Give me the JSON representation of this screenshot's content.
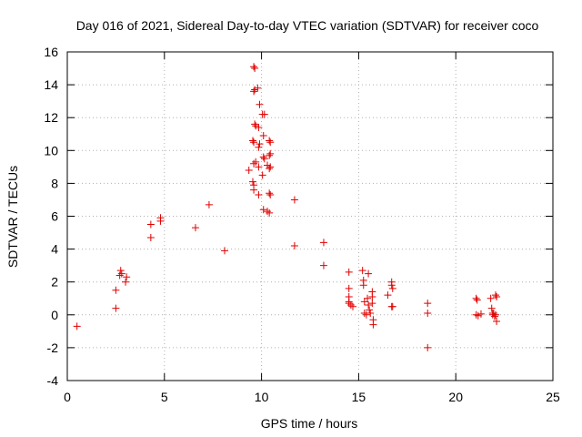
{
  "chart_data": {
    "type": "scatter",
    "title": "Day 016 of 2021, Sidereal Day-to-day VTEC variation (SDTVAR) for receiver coco",
    "xlabel": "GPS time / hours",
    "ylabel": "SDTVAR / TECUs",
    "xlim": [
      0,
      25
    ],
    "ylim": [
      -4,
      16
    ],
    "xticks": [
      0,
      5,
      10,
      15,
      20,
      25
    ],
    "yticks": [
      -4,
      -2,
      0,
      2,
      4,
      6,
      8,
      10,
      12,
      14,
      16
    ],
    "grid": true,
    "marker": "+",
    "color": "#e00000",
    "series": [
      {
        "name": "SDTVAR",
        "points": [
          [
            0.5,
            -0.7
          ],
          [
            2.5,
            1.5
          ],
          [
            2.5,
            0.4
          ],
          [
            2.7,
            2.4
          ],
          [
            2.75,
            2.7
          ],
          [
            2.8,
            2.5
          ],
          [
            3.0,
            2.0
          ],
          [
            3.05,
            2.3
          ],
          [
            4.3,
            5.5
          ],
          [
            4.3,
            4.7
          ],
          [
            4.8,
            5.9
          ],
          [
            4.8,
            5.7
          ],
          [
            6.6,
            5.3
          ],
          [
            7.3,
            6.7
          ],
          [
            8.1,
            3.9
          ],
          [
            9.35,
            8.8
          ],
          [
            9.6,
            15.1
          ],
          [
            9.65,
            15.0
          ],
          [
            9.6,
            13.6
          ],
          [
            9.65,
            13.7
          ],
          [
            9.8,
            13.8
          ],
          [
            9.65,
            11.6
          ],
          [
            9.7,
            11.5
          ],
          [
            9.55,
            10.6
          ],
          [
            9.6,
            10.5
          ],
          [
            9.6,
            9.2
          ],
          [
            9.7,
            9.3
          ],
          [
            9.55,
            8.1
          ],
          [
            9.6,
            7.9
          ],
          [
            9.6,
            7.6
          ],
          [
            9.9,
            12.8
          ],
          [
            9.85,
            11.4
          ],
          [
            10.05,
            12.2
          ],
          [
            10.15,
            12.2
          ],
          [
            10.1,
            10.9
          ],
          [
            9.9,
            10.4
          ],
          [
            9.85,
            10.2
          ],
          [
            10.1,
            9.6
          ],
          [
            10.15,
            9.5
          ],
          [
            9.85,
            9.0
          ],
          [
            10.05,
            8.5
          ],
          [
            9.85,
            7.3
          ],
          [
            10.1,
            6.4
          ],
          [
            10.3,
            6.3
          ],
          [
            10.4,
            6.2
          ],
          [
            10.4,
            10.6
          ],
          [
            10.45,
            10.5
          ],
          [
            10.4,
            9.7
          ],
          [
            10.45,
            9.8
          ],
          [
            10.3,
            9.1
          ],
          [
            10.4,
            8.9
          ],
          [
            10.45,
            9.0
          ],
          [
            10.4,
            7.4
          ],
          [
            10.45,
            7.3
          ],
          [
            11.7,
            7.0
          ],
          [
            11.7,
            4.2
          ],
          [
            13.2,
            4.4
          ],
          [
            13.2,
            3.0
          ],
          [
            14.5,
            2.6
          ],
          [
            14.5,
            1.6
          ],
          [
            14.5,
            1.1
          ],
          [
            14.5,
            0.8
          ],
          [
            14.6,
            0.6
          ],
          [
            14.5,
            0.7
          ],
          [
            14.7,
            0.5
          ],
          [
            15.2,
            2.7
          ],
          [
            15.25,
            2.1
          ],
          [
            15.25,
            1.8
          ],
          [
            15.3,
            0.8
          ],
          [
            15.3,
            0.1
          ],
          [
            15.4,
            0.0
          ],
          [
            15.5,
            2.5
          ],
          [
            15.45,
            1.0
          ],
          [
            15.5,
            0.6
          ],
          [
            15.55,
            0.3
          ],
          [
            15.6,
            0.1
          ],
          [
            15.7,
            1.4
          ],
          [
            15.7,
            1.1
          ],
          [
            15.7,
            0.7
          ],
          [
            15.75,
            -0.3
          ],
          [
            15.75,
            -0.6
          ],
          [
            16.5,
            1.2
          ],
          [
            16.7,
            2.0
          ],
          [
            16.7,
            1.8
          ],
          [
            16.75,
            1.6
          ],
          [
            16.7,
            0.5
          ],
          [
            16.75,
            0.5
          ],
          [
            18.55,
            0.7
          ],
          [
            18.55,
            0.1
          ],
          [
            18.55,
            -2.0
          ],
          [
            21.05,
            1.0
          ],
          [
            21.1,
            0.9
          ],
          [
            21.05,
            0.0
          ],
          [
            21.15,
            -0.05
          ],
          [
            21.3,
            0.05
          ],
          [
            21.8,
            1.0
          ],
          [
            21.85,
            0.4
          ],
          [
            21.9,
            0.1
          ],
          [
            21.9,
            0.0
          ],
          [
            21.95,
            0.1
          ],
          [
            22.0,
            -0.1
          ],
          [
            22.05,
            1.2
          ],
          [
            22.1,
            1.1
          ],
          [
            22.05,
            0.0
          ],
          [
            22.1,
            -0.4
          ]
        ]
      }
    ]
  }
}
